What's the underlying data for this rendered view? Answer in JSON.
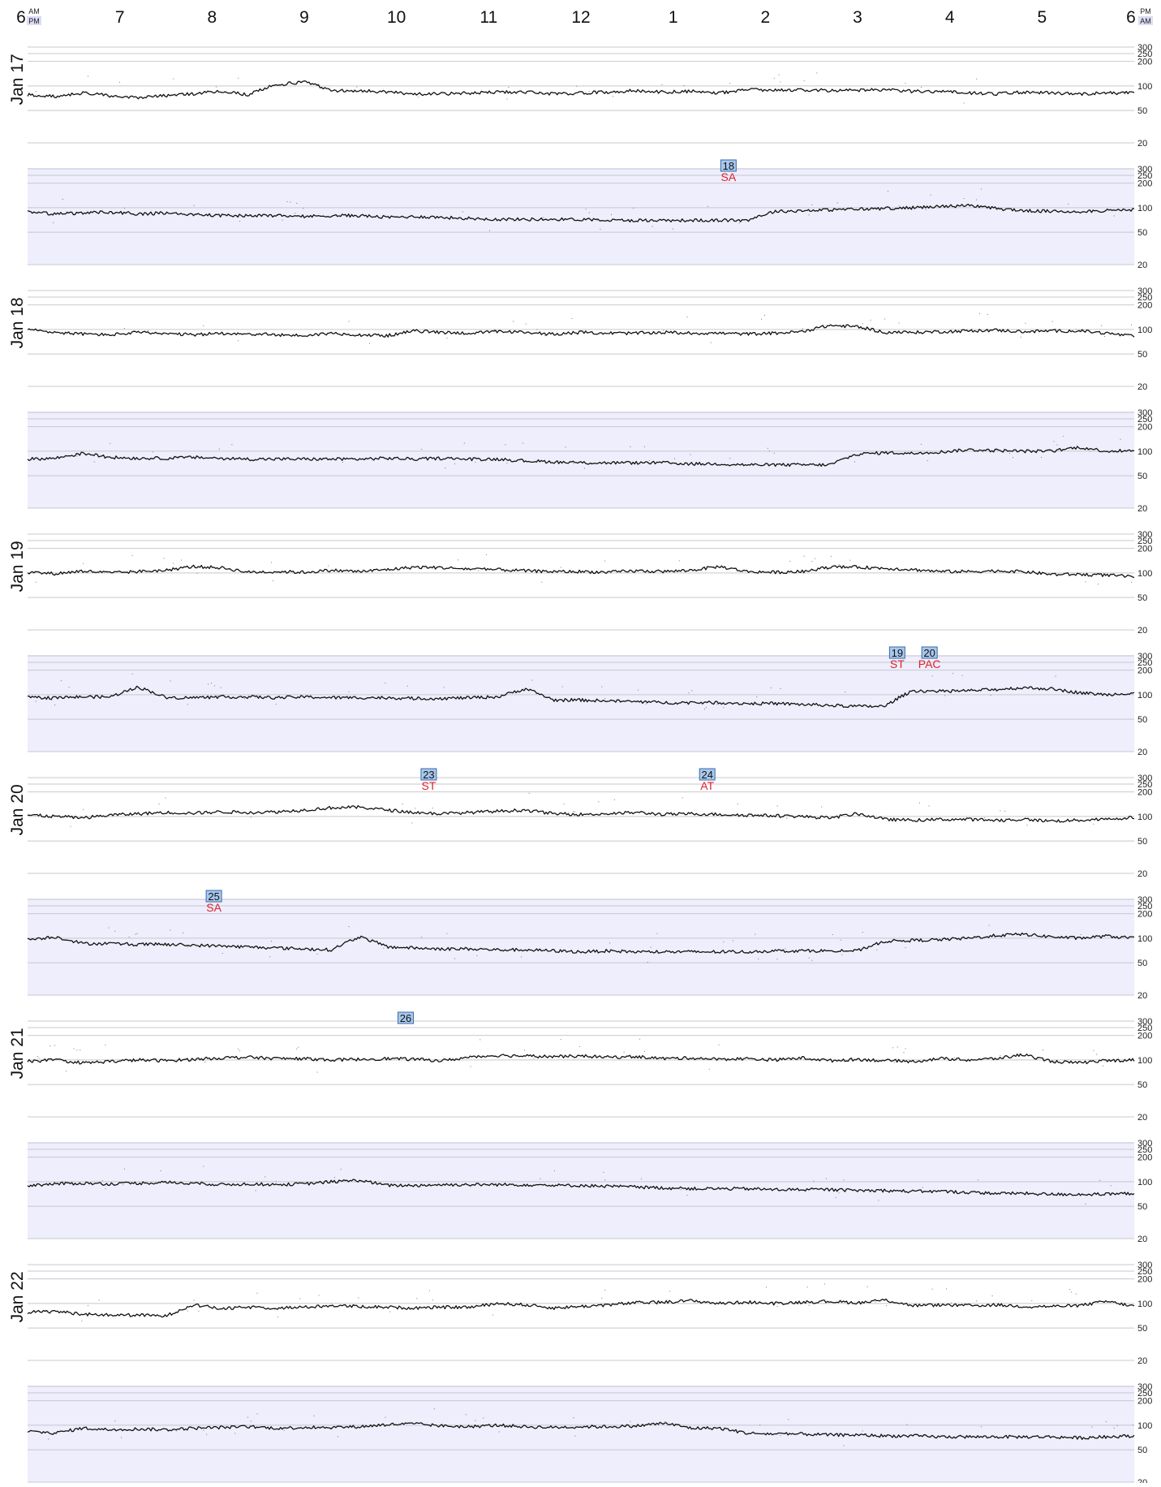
{
  "chart_data": {
    "type": "line",
    "title": "",
    "xlabel": "",
    "ylabel": "",
    "y_scale": "log",
    "ylim": [
      20,
      320
    ],
    "y_ticks": [
      20,
      50,
      100,
      200,
      250,
      300
    ],
    "grid": true,
    "hour_labels": [
      "6",
      "7",
      "8",
      "9",
      "10",
      "11",
      "12",
      "1",
      "2",
      "3",
      "4",
      "5",
      "6"
    ],
    "start_badge": [
      "AM",
      "PM"
    ],
    "end_badge": [
      "PM",
      "AM"
    ],
    "colors": {
      "night_band": "#eeeefc",
      "trace": "#111111",
      "event_box": "#a8c8ec",
      "event_border": "#3a6aa8",
      "event_label": "#e0202a",
      "badge": "#dcdcf4"
    },
    "rows": [
      {
        "day": "Jan 17",
        "period": "day",
        "baseline": [
          78,
          74,
          82,
          76,
          72,
          76,
          80,
          86,
          78,
          104,
          112,
          88,
          88,
          84,
          80,
          80,
          82,
          84,
          84,
          80,
          82,
          84,
          88,
          84,
          86,
          82,
          90,
          88,
          90,
          88,
          88,
          90,
          86,
          86,
          82,
          80,
          84,
          82,
          80,
          82,
          82
        ],
        "events": []
      },
      {
        "day": "",
        "period": "night",
        "baseline": [
          88,
          84,
          86,
          88,
          84,
          86,
          82,
          80,
          80,
          80,
          78,
          80,
          80,
          76,
          78,
          76,
          74,
          72,
          72,
          72,
          72,
          70,
          70,
          70,
          70,
          70,
          70,
          90,
          92,
          94,
          96,
          98,
          100,
          104,
          106,
          98,
          92,
          90,
          90,
          92,
          94
        ],
        "events": [
          {
            "id": "18",
            "label": "SA",
            "hour": 7.6
          }
        ]
      },
      {
        "day": "Jan 18",
        "period": "day",
        "baseline": [
          100,
          92,
          88,
          86,
          92,
          88,
          86,
          90,
          88,
          86,
          84,
          90,
          86,
          84,
          96,
          92,
          90,
          94,
          92,
          88,
          92,
          90,
          90,
          92,
          90,
          90,
          88,
          90,
          94,
          112,
          108,
          92,
          92,
          94,
          96,
          98,
          94,
          96,
          96,
          90,
          82
        ],
        "events": []
      },
      {
        "day": "",
        "period": "night",
        "baseline": [
          80,
          82,
          94,
          84,
          82,
          82,
          84,
          82,
          80,
          80,
          80,
          80,
          80,
          82,
          80,
          82,
          80,
          80,
          76,
          74,
          72,
          72,
          72,
          72,
          70,
          70,
          68,
          68,
          68,
          68,
          92,
          96,
          94,
          98,
          104,
          102,
          100,
          100,
          112,
          100,
          102
        ],
        "events": []
      },
      {
        "day": "Jan 19",
        "period": "day",
        "baseline": [
          102,
          98,
          106,
          100,
          104,
          108,
          120,
          116,
          102,
          104,
          102,
          108,
          104,
          110,
          118,
          116,
          112,
          110,
          106,
          104,
          104,
          102,
          106,
          104,
          108,
          120,
          104,
          102,
          104,
          118,
          118,
          114,
          110,
          104,
          104,
          106,
          104,
          96,
          96,
          94,
          90
        ],
        "events": []
      },
      {
        "day": "",
        "period": "night",
        "baseline": [
          92,
          92,
          94,
          94,
          124,
          92,
          92,
          94,
          94,
          92,
          94,
          92,
          92,
          92,
          90,
          90,
          92,
          94,
          118,
          86,
          86,
          84,
          82,
          80,
          80,
          80,
          78,
          78,
          76,
          74,
          72,
          72,
          112,
          110,
          112,
          116,
          122,
          118,
          106,
          100,
          106
        ],
        "events": [
          {
            "id": "19",
            "label": "ST",
            "hour": 9.43
          },
          {
            "id": "20",
            "label": "PAC",
            "hour": 9.78
          }
        ]
      },
      {
        "day": "Jan 20",
        "period": "day",
        "baseline": [
          104,
          100,
          96,
          104,
          108,
          112,
          110,
          114,
          112,
          114,
          120,
          128,
          130,
          120,
          112,
          108,
          112,
          116,
          120,
          108,
          106,
          108,
          112,
          106,
          108,
          106,
          104,
          102,
          100,
          96,
          108,
          92,
          90,
          92,
          92,
          90,
          92,
          88,
          90,
          92,
          98
        ],
        "events": [
          {
            "id": "23",
            "label": "ST",
            "hour": 4.35
          },
          {
            "id": "24",
            "label": "AT",
            "hour": 7.37
          }
        ]
      },
      {
        "day": "",
        "period": "night",
        "baseline": [
          96,
          104,
          86,
          86,
          84,
          84,
          82,
          80,
          78,
          76,
          74,
          72,
          104,
          78,
          76,
          74,
          74,
          72,
          72,
          70,
          68,
          70,
          68,
          68,
          68,
          68,
          68,
          70,
          70,
          70,
          70,
          92,
          94,
          96,
          100,
          108,
          112,
          104,
          100,
          106,
          100
        ],
        "events": [
          {
            "id": "25",
            "label": "SA",
            "hour": 2.02
          }
        ]
      },
      {
        "day": "Jan 21",
        "period": "day",
        "baseline": [
          96,
          100,
          92,
          96,
          100,
          98,
          102,
          106,
          108,
          104,
          104,
          100,
          102,
          104,
          102,
          98,
          108,
          114,
          112,
          110,
          112,
          108,
          110,
          104,
          106,
          102,
          104,
          100,
          106,
          98,
          102,
          98,
          96,
          104,
          100,
          104,
          116,
          96,
          92,
          98,
          100
        ],
        "events": [
          {
            "id": "26",
            "label": "",
            "hour": 4.1
          }
        ]
      },
      {
        "day": "",
        "period": "night",
        "baseline": [
          90,
          94,
          96,
          94,
          96,
          98,
          96,
          92,
          94,
          92,
          94,
          100,
          104,
          90,
          90,
          92,
          92,
          92,
          92,
          90,
          90,
          88,
          86,
          84,
          82,
          82,
          82,
          80,
          80,
          80,
          78,
          78,
          76,
          76,
          74,
          72,
          72,
          70,
          70,
          70,
          72
        ],
        "events": []
      },
      {
        "day": "Jan 22",
        "period": "day",
        "baseline": [
          78,
          80,
          74,
          72,
          72,
          70,
          96,
          86,
          90,
          88,
          90,
          94,
          92,
          90,
          88,
          90,
          90,
          100,
          96,
          88,
          92,
          96,
          102,
          104,
          108,
          100,
          104,
          100,
          104,
          106,
          102,
          110,
          94,
          96,
          94,
          96,
          92,
          92,
          94,
          106,
          92
        ],
        "events": []
      },
      {
        "day": "",
        "period": "night",
        "baseline": [
          84,
          80,
          92,
          88,
          90,
          88,
          92,
          94,
          96,
          92,
          94,
          94,
          96,
          102,
          104,
          98,
          96,
          100,
          96,
          94,
          96,
          96,
          98,
          106,
          92,
          92,
          80,
          78,
          78,
          76,
          76,
          74,
          74,
          72,
          72,
          72,
          72,
          72,
          70,
          72,
          74
        ],
        "events": []
      }
    ]
  }
}
